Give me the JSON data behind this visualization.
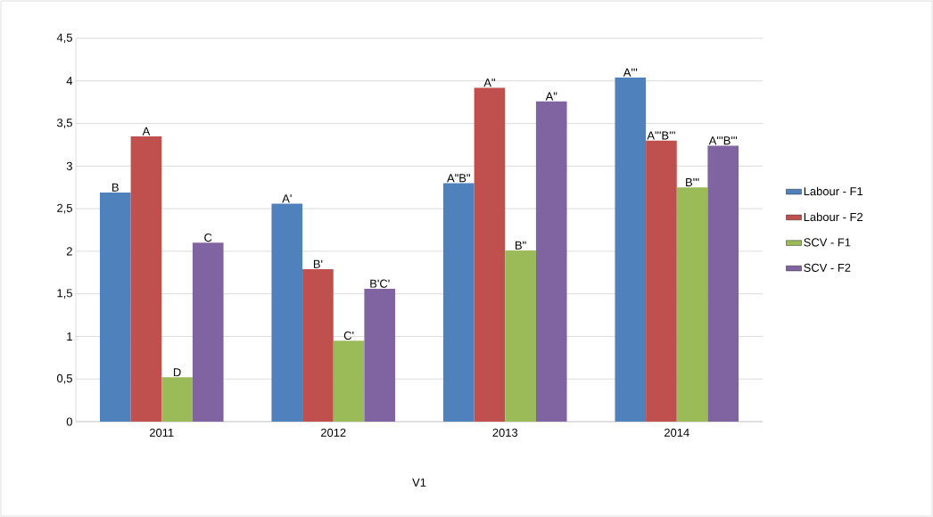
{
  "chart_data": {
    "type": "bar",
    "xlabel": "V1",
    "categories": [
      "2011",
      "2012",
      "2013",
      "2014"
    ],
    "ylim": [
      0,
      4.5
    ],
    "yticks": [
      0,
      {
        "value": 0.5,
        "label": "0,5"
      },
      1,
      {
        "value": 1.5,
        "label": "1,5"
      },
      2,
      {
        "value": 2.5,
        "label": "2,5"
      },
      3,
      {
        "value": 3.5,
        "label": "3,5"
      },
      4,
      {
        "value": 4.5,
        "label": "4,5"
      }
    ],
    "grid": "y",
    "legend": "right",
    "series": [
      {
        "name": "Labour - F1",
        "color": "#4f81bd",
        "values": [
          2.69,
          2.56,
          2.8,
          4.04
        ],
        "value_labels": [
          "B",
          "A'",
          "A\"B\"",
          "A'''"
        ]
      },
      {
        "name": "Labour - F2",
        "color": "#c0504d",
        "values": [
          3.35,
          1.79,
          3.92,
          3.3
        ],
        "value_labels": [
          "A",
          "B'",
          "A\"",
          "A'''B'''"
        ]
      },
      {
        "name": "SCV - F1",
        "color": "#9bbb59",
        "values": [
          0.52,
          0.95,
          2.01,
          2.75
        ],
        "value_labels": [
          "D",
          "C'",
          "B\"",
          "B'''"
        ]
      },
      {
        "name": "SCV - F2",
        "color": "#8064a2",
        "values": [
          2.1,
          1.56,
          3.76,
          3.24
        ],
        "value_labels": [
          "C",
          "B'C'",
          "A\"",
          "A'''B'''"
        ]
      }
    ]
  }
}
